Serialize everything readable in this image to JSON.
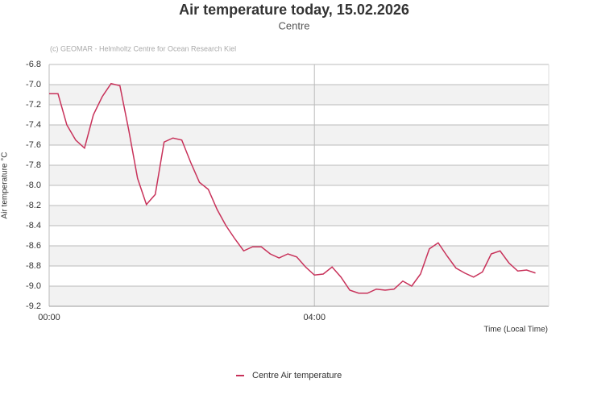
{
  "chart_data": {
    "type": "line",
    "title": "Air temperature today, 15.02.2026",
    "subtitle": "Centre",
    "credit": "(c) GEOMAR - Helmholtz Centre for Ocean Research Kiel",
    "y_label": "Air temperature °C",
    "x_label": "Time (Local Time)",
    "xlim": [
      0,
      452
    ],
    "xticks": [
      {
        "value": 0,
        "label": "00:00"
      },
      {
        "value": 240,
        "label": "04:00"
      }
    ],
    "ylim": [
      -9.2,
      -6.8
    ],
    "yticks": [
      -6.8,
      {
        "value": -7,
        "label": "-7.0"
      },
      -7.2,
      -7.4,
      -7.6,
      -7.8,
      {
        "value": -8,
        "label": "-8.0"
      },
      -8.2,
      -8.4,
      -8.6,
      -8.8,
      {
        "value": -9,
        "label": "-9.0"
      },
      -9.2
    ],
    "grid": true,
    "legend": "bottom",
    "x": [
      0,
      8,
      16,
      24,
      32,
      40,
      48,
      56,
      64,
      72,
      80,
      88,
      96,
      104,
      112,
      120,
      128,
      136,
      144,
      152,
      160,
      168,
      176,
      184,
      192,
      200,
      208,
      216,
      224,
      232,
      240,
      248,
      256,
      264,
      272,
      280,
      288,
      296,
      304,
      312,
      320,
      328,
      336,
      344,
      352,
      360,
      368,
      376,
      384,
      392,
      400,
      408,
      416,
      424,
      432,
      440
    ],
    "series": [
      {
        "name": "Centre Air temperature",
        "color": "#c8325a",
        "values": [
          -7.09,
          -7.09,
          -7.4,
          -7.55,
          -7.63,
          -7.3,
          -7.12,
          -6.99,
          -7.01,
          -7.45,
          -7.93,
          -8.19,
          -8.09,
          -7.57,
          -7.53,
          -7.55,
          -7.77,
          -7.97,
          -8.04,
          -8.24,
          -8.4,
          -8.53,
          -8.65,
          -8.61,
          -8.61,
          -8.68,
          -8.72,
          -8.68,
          -8.71,
          -8.81,
          -8.89,
          -8.88,
          -8.81,
          -8.91,
          -9.04,
          -9.07,
          -9.07,
          -9.03,
          -9.04,
          -9.03,
          -8.95,
          -9.0,
          -8.88,
          -8.63,
          -8.57,
          -8.7,
          -8.82,
          -8.87,
          -8.91,
          -8.86,
          -8.68,
          -8.65,
          -8.77,
          -8.85,
          -8.84,
          -8.87
        ]
      }
    ]
  }
}
